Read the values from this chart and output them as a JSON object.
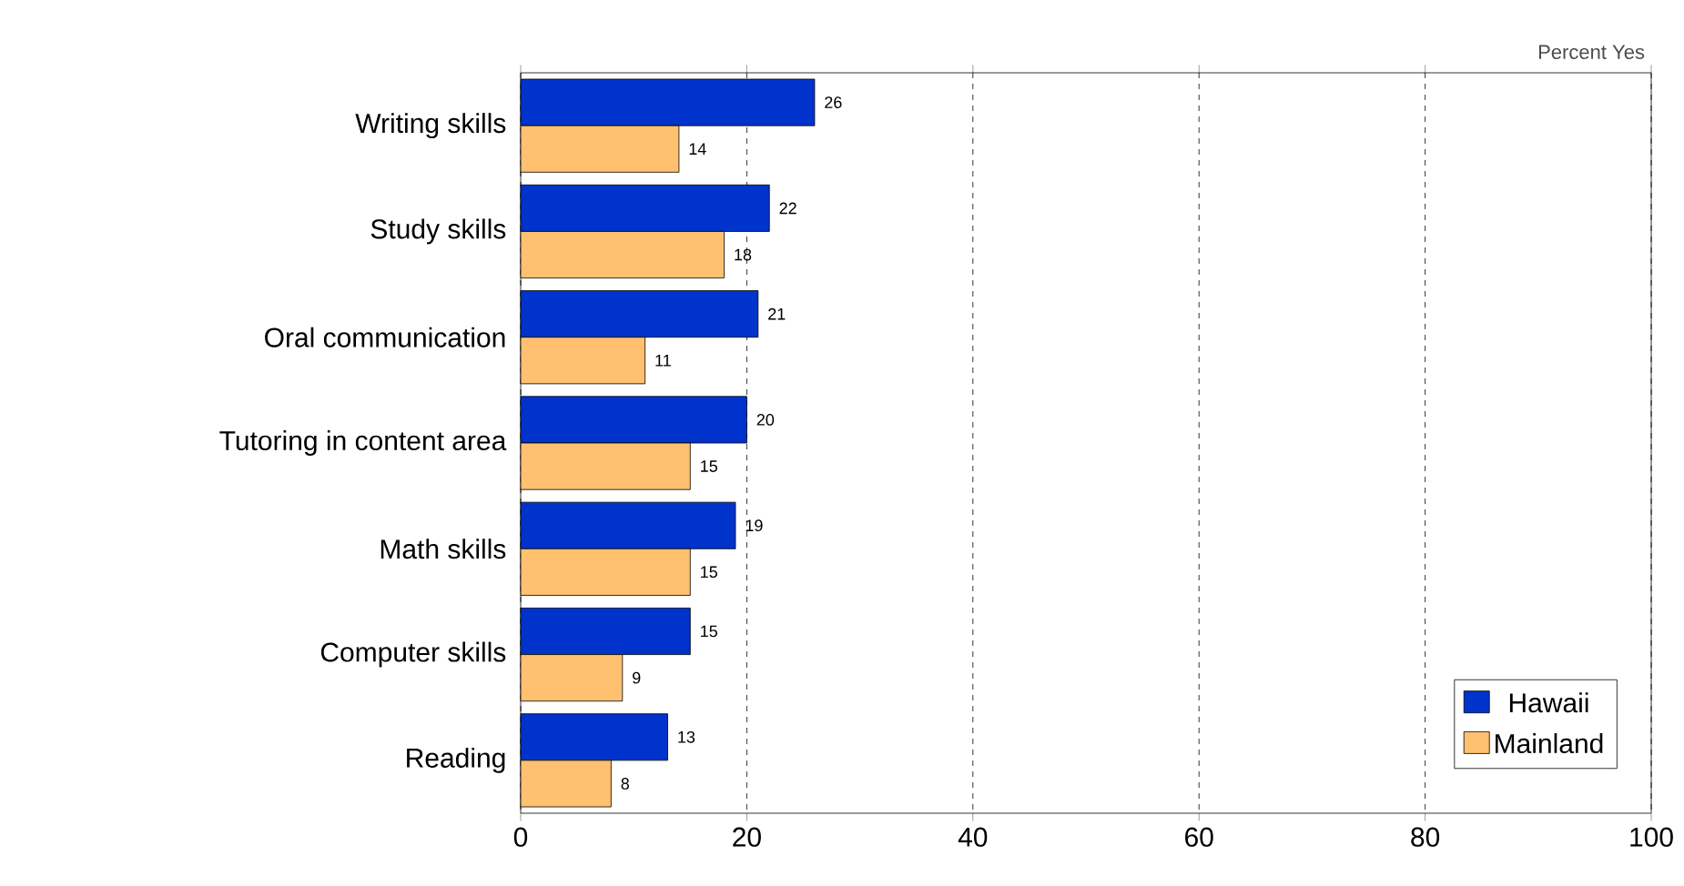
{
  "chart_data": {
    "type": "bar",
    "orientation": "horizontal",
    "xlabel": "Percent Yes",
    "categories": [
      "Writing skills",
      "Study skills",
      "Oral communication",
      "Tutoring in content area",
      "Math skills",
      "Computer skills",
      "Reading"
    ],
    "series": [
      {
        "name": "Hawaii",
        "color": "#0033cc",
        "values": [
          26,
          22,
          21,
          20,
          19,
          15,
          13
        ]
      },
      {
        "name": "Mainland",
        "color": "#ffc06f",
        "values": [
          14,
          18,
          11,
          15,
          15,
          9,
          8
        ]
      }
    ],
    "xlim": [
      0,
      100
    ],
    "xticks": [
      0,
      20,
      40,
      60,
      80,
      100
    ],
    "grid": "x",
    "legend": "bottom right",
    "data_labels": true
  }
}
